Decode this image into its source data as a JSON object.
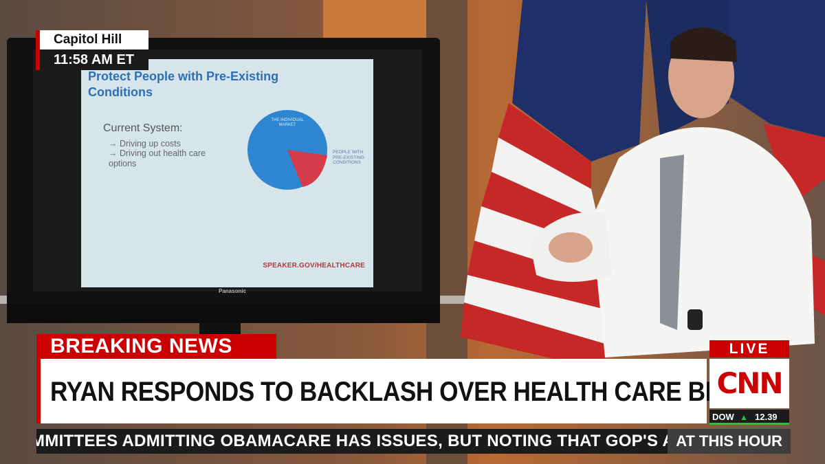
{
  "location": {
    "title": "Capitol Hill",
    "time": "11:58 AM ET"
  },
  "slide": {
    "title": "Protect People with Pre-Existing Conditions",
    "subtitle": "Current System:",
    "bullets": [
      "→ Driving up costs",
      "→ Driving out health care options"
    ],
    "pie_label_main": "THE INDIVIDUAL MARKET",
    "pie_label_slice": "PEOPLE WITH PRE-EXISTING CONDITIONS",
    "url": "SPEAKER.GOV/HEALTHCARE",
    "tv_brand": "Panasonic"
  },
  "lower_third": {
    "breaking": "BREAKING NEWS",
    "headline": "RYAN RESPONDS TO BACKLASH OVER HEALTH CARE BILL",
    "ticker": "MMITTEES ADMITTING OBAMACARE HAS ISSUES, BUT NOTING THAT GOP'S A",
    "show": "AT THIS HOUR"
  },
  "network": {
    "live": "LIVE",
    "logo": "CNN",
    "dow_label": "DOW",
    "dow_value": "12.39"
  },
  "colors": {
    "cnn_red": "#cc0000",
    "ticker_bg": "#1b1b1b",
    "dow_up": "#2dc03a",
    "slide_blue": "#2f6fb3"
  }
}
